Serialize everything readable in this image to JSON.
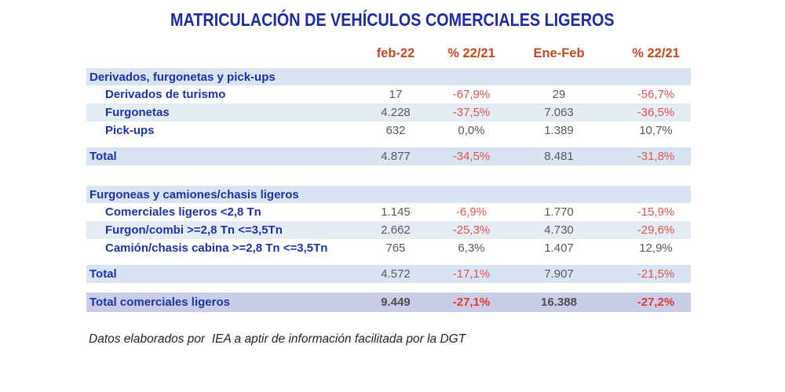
{
  "title": "MATRICULACIÓN DE VEHÍCULOS COMERCIALES LIGEROS",
  "table": {
    "columns": [
      "feb-22",
      "% 22/21",
      "Ene-Feb",
      "% 22/21"
    ],
    "sections": [
      {
        "header": "Derivados, furgonetas y pick-ups",
        "rows": [
          {
            "label": "Derivados de turismo",
            "v1": "17",
            "v2": "-67,9%",
            "v3": "29",
            "v4": "-56,7%"
          },
          {
            "label": "Furgonetas",
            "v1": "4.228",
            "v2": "-37,5%",
            "v3": "7.063",
            "v4": "-36,5%"
          },
          {
            "label": "Pick-ups",
            "v1": "632",
            "v2": "0,0%",
            "v3": "1.389",
            "v4": "10,7%"
          }
        ],
        "total": {
          "label": "Total",
          "v1": "4.877",
          "v2": "-34,5%",
          "v3": "8.481",
          "v4": "-31,8%"
        }
      },
      {
        "header": "Furgoneas y camiones/chasis ligeros",
        "rows": [
          {
            "label": "Comerciales ligeros <2,8 Tn",
            "v1": "1.145",
            "v2": "-6,9%",
            "v3": "1.770",
            "v4": "-15,9%"
          },
          {
            "label": "Furgon/combi >=2,8 Tn <=3,5Tn",
            "v1": "2.662",
            "v2": "-25,3%",
            "v3": "4.730",
            "v4": "-29,6%"
          },
          {
            "label": "Camión/chasis cabina >=2,8 Tn <=3,5Tn",
            "v1": "765",
            "v2": "6,3%",
            "v3": "1.407",
            "v4": "12,9%"
          }
        ],
        "total": {
          "label": "Total",
          "v1": "4.572",
          "v2": "-17,1%",
          "v3": "7.907",
          "v4": "-21,5%"
        }
      }
    ],
    "grand_total": {
      "label": "Total comerciales ligeros",
      "v1": "9.449",
      "v2": "-27,1%",
      "v3": "16.388",
      "v4": "-27,2%"
    }
  },
  "footnote": "Datos elaborados por  IEA a aptir de información facilitada por la DGT",
  "colors": {
    "title_blue": "#1D2C9F",
    "label_blue": "#1E33A3",
    "header_orange": "#C04A20",
    "negative_red": "#E05252",
    "value_gray": "#58585A",
    "band_blue": "#D9E4F2",
    "band_light": "#E6ECF5",
    "band_lavender": "#C9CDE6"
  },
  "chart_data": {
    "type": "table",
    "title": "MATRICULACIÓN DE VEHÍCULOS COMERCIALES LIGEROS",
    "columns": [
      "",
      "feb-22",
      "% 22/21",
      "Ene-Feb",
      "% 22/21"
    ],
    "rows": [
      [
        "Derivados, furgonetas y pick-ups",
        "",
        "",
        "",
        ""
      ],
      [
        "Derivados de turismo",
        "17",
        "-67,9%",
        "29",
        "-56,7%"
      ],
      [
        "Furgonetas",
        "4.228",
        "-37,5%",
        "7.063",
        "-36,5%"
      ],
      [
        "Pick-ups",
        "632",
        "0,0%",
        "1.389",
        "10,7%"
      ],
      [
        "Total",
        "4.877",
        "-34,5%",
        "8.481",
        "-31,8%"
      ],
      [
        "Furgoneas y camiones/chasis ligeros",
        "",
        "",
        "",
        ""
      ],
      [
        "Comerciales ligeros <2,8 Tn",
        "1.145",
        "-6,9%",
        "1.770",
        "-15,9%"
      ],
      [
        "Furgon/combi >=2,8 Tn <=3,5Tn",
        "2.662",
        "-25,3%",
        "4.730",
        "-29,6%"
      ],
      [
        "Camión/chasis cabina >=2,8 Tn <=3,5Tn",
        "765",
        "6,3%",
        "1.407",
        "12,9%"
      ],
      [
        "Total",
        "4.572",
        "-17,1%",
        "7.907",
        "-21,5%"
      ],
      [
        "Total comerciales ligeros",
        "9.449",
        "-27,1%",
        "16.388",
        "-27,2%"
      ]
    ],
    "footnote": "Datos elaborados por IEA a aptir de información facilitada por la DGT"
  }
}
